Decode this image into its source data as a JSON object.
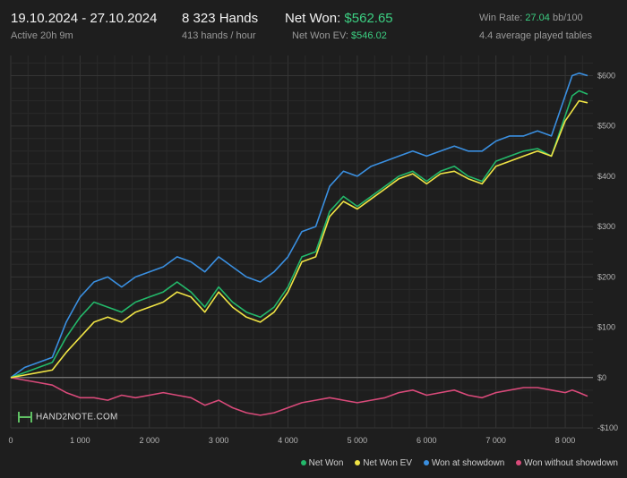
{
  "header": {
    "date_range": "19.10.2024 - 27.10.2024",
    "active": "Active 20h 9m",
    "hands": "8 323 Hands",
    "hands_per_hour": "413 hands / hour",
    "net_won_label": "Net Won:",
    "net_won_value": "$562.65",
    "net_won_ev_label": "Net Won  EV:",
    "net_won_ev_value": "$546.02",
    "win_rate_label": "Win Rate:",
    "win_rate_value": "27.04",
    "win_rate_unit": "bb/100",
    "avg_tables": "4.4 average played tables"
  },
  "logo": {
    "text": "HAND2NOTE.COM"
  },
  "colors": {
    "net_won": "#23b86a",
    "net_won_ev": "#f0e445",
    "showdown": "#3a8fe0",
    "non_showdown": "#d94a7a",
    "accent_green": "#3ccf82"
  },
  "chart_data": {
    "type": "line",
    "xlim": [
      0,
      8400
    ],
    "ylim": [
      -100,
      640
    ],
    "x_ticks": [
      0,
      1000,
      2000,
      3000,
      4000,
      5000,
      6000,
      7000,
      8000
    ],
    "x_tick_labels": [
      "0",
      "1 000",
      "2 000",
      "3 000",
      "4 000",
      "5 000",
      "6 000",
      "7 000",
      "8 000"
    ],
    "y_ticks": [
      -100,
      0,
      100,
      200,
      300,
      400,
      500,
      600
    ],
    "y_tick_labels": [
      "-$100",
      "$0",
      "$100",
      "$200",
      "$300",
      "$400",
      "$500",
      "$600"
    ],
    "grid": true,
    "legend_position": "bottom-right",
    "series": [
      {
        "name": "Net Won",
        "color": "#23b86a",
        "x": [
          0,
          200,
          400,
          600,
          800,
          1000,
          1200,
          1400,
          1600,
          1800,
          2000,
          2200,
          2400,
          2600,
          2800,
          3000,
          3200,
          3400,
          3600,
          3800,
          4000,
          4200,
          4400,
          4600,
          4800,
          5000,
          5200,
          5400,
          5600,
          5800,
          6000,
          6200,
          6400,
          6600,
          6800,
          7000,
          7200,
          7400,
          7600,
          7800,
          8000,
          8100,
          8200,
          8323
        ],
        "y": [
          0,
          10,
          20,
          30,
          80,
          120,
          150,
          140,
          130,
          150,
          160,
          170,
          190,
          170,
          140,
          180,
          150,
          130,
          120,
          140,
          180,
          240,
          250,
          330,
          360,
          340,
          360,
          380,
          400,
          410,
          390,
          410,
          420,
          400,
          390,
          430,
          440,
          450,
          455,
          440,
          520,
          560,
          570,
          563
        ]
      },
      {
        "name": "Net Won  EV",
        "color": "#f0e445",
        "x": [
          0,
          200,
          400,
          600,
          800,
          1000,
          1200,
          1400,
          1600,
          1800,
          2000,
          2200,
          2400,
          2600,
          2800,
          3000,
          3200,
          3400,
          3600,
          3800,
          4000,
          4200,
          4400,
          4600,
          4800,
          5000,
          5200,
          5400,
          5600,
          5800,
          6000,
          6200,
          6400,
          6600,
          6800,
          7000,
          7200,
          7400,
          7600,
          7800,
          8000,
          8100,
          8200,
          8323
        ],
        "y": [
          0,
          5,
          10,
          15,
          50,
          80,
          110,
          120,
          110,
          130,
          140,
          150,
          170,
          160,
          130,
          170,
          140,
          120,
          110,
          130,
          170,
          230,
          240,
          320,
          350,
          335,
          355,
          375,
          395,
          405,
          385,
          405,
          410,
          395,
          385,
          420,
          430,
          440,
          450,
          440,
          510,
          530,
          550,
          546
        ]
      },
      {
        "name": "Won at showdown",
        "color": "#3a8fe0",
        "x": [
          0,
          200,
          400,
          600,
          800,
          1000,
          1200,
          1400,
          1600,
          1800,
          2000,
          2200,
          2400,
          2600,
          2800,
          3000,
          3200,
          3400,
          3600,
          3800,
          4000,
          4200,
          4400,
          4600,
          4800,
          5000,
          5200,
          5400,
          5600,
          5800,
          6000,
          6200,
          6400,
          6600,
          6800,
          7000,
          7200,
          7400,
          7600,
          7800,
          8000,
          8100,
          8200,
          8323
        ],
        "y": [
          0,
          20,
          30,
          40,
          110,
          160,
          190,
          200,
          180,
          200,
          210,
          220,
          240,
          230,
          210,
          240,
          220,
          200,
          190,
          210,
          240,
          290,
          300,
          380,
          410,
          400,
          420,
          430,
          440,
          450,
          440,
          450,
          460,
          450,
          450,
          470,
          480,
          480,
          490,
          480,
          560,
          600,
          605,
          600
        ]
      },
      {
        "name": "Won without showdown",
        "color": "#d94a7a",
        "x": [
          0,
          200,
          400,
          600,
          800,
          1000,
          1200,
          1400,
          1600,
          1800,
          2000,
          2200,
          2400,
          2600,
          2800,
          3000,
          3200,
          3400,
          3600,
          3800,
          4000,
          4200,
          4400,
          4600,
          4800,
          5000,
          5200,
          5400,
          5600,
          5800,
          6000,
          6200,
          6400,
          6600,
          6800,
          7000,
          7200,
          7400,
          7600,
          7800,
          8000,
          8100,
          8200,
          8323
        ],
        "y": [
          0,
          -5,
          -10,
          -15,
          -30,
          -40,
          -40,
          -45,
          -35,
          -40,
          -35,
          -30,
          -35,
          -40,
          -55,
          -45,
          -60,
          -70,
          -75,
          -70,
          -60,
          -50,
          -45,
          -40,
          -45,
          -50,
          -45,
          -40,
          -30,
          -25,
          -35,
          -30,
          -25,
          -35,
          -40,
          -30,
          -25,
          -20,
          -20,
          -25,
          -30,
          -25,
          -30,
          -37
        ]
      }
    ]
  }
}
